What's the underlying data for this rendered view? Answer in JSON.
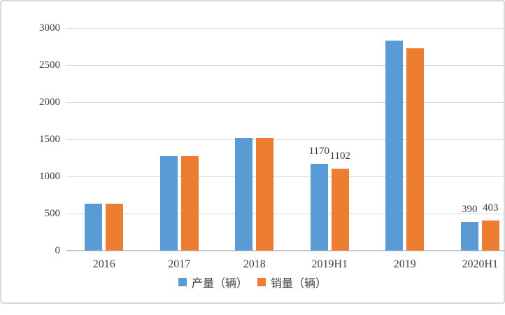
{
  "chart_data": {
    "type": "bar",
    "title": "",
    "xlabel": "",
    "ylabel": "",
    "categories": [
      "2016",
      "2017",
      "2018",
      "2019H1",
      "2019",
      "2020H1"
    ],
    "series": [
      {
        "name": "产量（辆）",
        "color": "#5B9BD5",
        "values": [
          635,
          1270,
          1520,
          1170,
          2830,
          390
        ],
        "labels": [
          "",
          "",
          "",
          "1170",
          "",
          "390"
        ]
      },
      {
        "name": "销量（辆）",
        "color": "#ED7D31",
        "values": [
          635,
          1270,
          1520,
          1102,
          2730,
          403
        ],
        "labels": [
          "",
          "",
          "",
          "1102",
          "",
          "403"
        ]
      }
    ],
    "ylim": [
      0,
      3000
    ],
    "ytick_step": 500,
    "yticks": [
      "3000",
      "2500",
      "2000",
      "1500",
      "1000",
      "500",
      "0"
    ],
    "grid": true,
    "legend_position": "bottom"
  },
  "colors": {
    "series_production": "#5B9BD5",
    "series_sales": "#ED7D31",
    "gridline": "#d9d9d9",
    "axis_line": "#c6c6c6",
    "axis_text": "#404040",
    "border": "#d9d9d9",
    "background": "#ffffff"
  }
}
